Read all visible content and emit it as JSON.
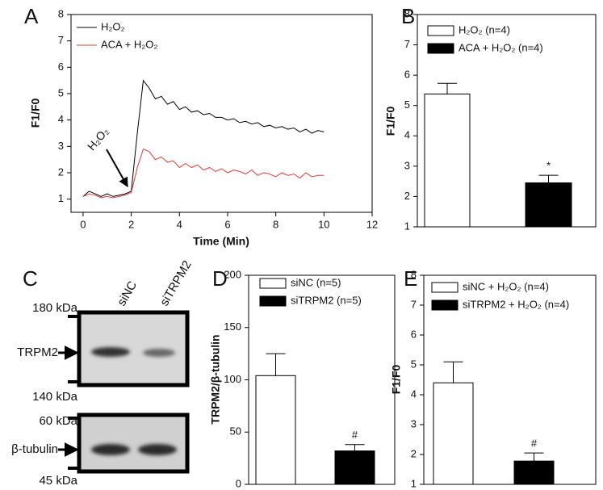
{
  "chart_data": [
    {
      "type": "line",
      "panel": "A",
      "x_label": "Time (Min)",
      "y_label": "F1/F0",
      "xlim": [
        -0.5,
        12
      ],
      "ylim": [
        0.5,
        8
      ],
      "xticks": [
        0,
        2,
        4,
        6,
        8,
        10,
        12
      ],
      "yticks": [
        1,
        2,
        3,
        4,
        5,
        6,
        7,
        8
      ],
      "annotation": "H₂O₂",
      "x": [
        0,
        0.25,
        0.5,
        0.75,
        1,
        1.25,
        1.5,
        1.75,
        2,
        2.25,
        2.5,
        2.75,
        3,
        3.25,
        3.5,
        3.75,
        4,
        4.25,
        4.5,
        4.75,
        5,
        5.25,
        5.5,
        5.75,
        6,
        6.25,
        6.5,
        6.75,
        7,
        7.25,
        7.5,
        7.75,
        8,
        8.25,
        8.5,
        8.75,
        9,
        9.25,
        9.5,
        9.75,
        10
      ],
      "series": [
        {
          "name": "H₂O₂",
          "color": "#000000",
          "values": [
            1.1,
            1.3,
            1.2,
            1.1,
            1.2,
            1.1,
            1.15,
            1.2,
            1.3,
            3.5,
            5.5,
            5.2,
            4.8,
            4.9,
            4.6,
            4.7,
            4.4,
            4.5,
            4.3,
            4.35,
            4.2,
            4.25,
            4.1,
            4.1,
            4.0,
            4.05,
            3.9,
            3.95,
            3.85,
            3.9,
            3.75,
            3.8,
            3.7,
            3.75,
            3.65,
            3.7,
            3.55,
            3.65,
            3.5,
            3.6,
            3.55
          ]
        },
        {
          "name": "ACA + H₂O₂",
          "color": "#e03c3c",
          "values": [
            1.1,
            1.2,
            1.15,
            1.05,
            1.1,
            1.05,
            1.1,
            1.15,
            1.25,
            2.2,
            2.9,
            2.8,
            2.5,
            2.6,
            2.4,
            2.45,
            2.2,
            2.35,
            2.2,
            2.3,
            2.1,
            2.2,
            2.05,
            2.15,
            2.0,
            2.1,
            2.05,
            1.95,
            2.1,
            1.9,
            2.0,
            1.95,
            1.85,
            2.0,
            1.9,
            1.95,
            1.8,
            2.0,
            1.85,
            1.9,
            1.9
          ]
        }
      ]
    },
    {
      "type": "bar",
      "panel": "B",
      "y_label": "F1/F0",
      "ylim": [
        1,
        8
      ],
      "yticks": [
        1,
        2,
        3,
        4,
        5,
        6,
        7,
        8
      ],
      "series": [
        {
          "name": "H₂O₂ (n=4)",
          "color": "#ffffff",
          "values": [
            5.38
          ],
          "errors": [
            0.35
          ]
        },
        {
          "name": "ACA + H₂O₂ (n=4)",
          "color": "#000000",
          "values": [
            2.45
          ],
          "errors": [
            0.25
          ],
          "marker_label": "*"
        }
      ]
    },
    {
      "type": "bar",
      "panel": "D",
      "y_label": "TRPM2/β-tubulin",
      "ylim": [
        0,
        200
      ],
      "yticks": [
        0,
        50,
        100,
        150,
        200
      ],
      "series": [
        {
          "name": "siNC (n=5)",
          "color": "#ffffff",
          "values": [
            104
          ],
          "errors": [
            21
          ]
        },
        {
          "name": "siTRPM2 (n=5)",
          "color": "#000000",
          "values": [
            32
          ],
          "errors": [
            6
          ],
          "marker_label": "#"
        }
      ]
    },
    {
      "type": "bar",
      "panel": "E",
      "y_label": "F1/F0",
      "ylim": [
        1,
        8
      ],
      "yticks": [
        1,
        2,
        3,
        4,
        5,
        6,
        7,
        8
      ],
      "series": [
        {
          "name": "siNC + H₂O₂ (n=4)",
          "color": "#ffffff",
          "values": [
            4.4
          ],
          "errors": [
            0.7
          ]
        },
        {
          "name": "siTRPM2 + H₂O₂ (n=4)",
          "color": "#000000",
          "values": [
            1.78
          ],
          "errors": [
            0.27
          ],
          "marker_label": "#"
        }
      ]
    }
  ],
  "blot": {
    "panel": "C",
    "lanes": [
      "siNC",
      "siTRPM2"
    ],
    "top_marker_high": "180 kDa",
    "top_target": "TRPM2",
    "top_marker_low": "140 kDa",
    "bottom_marker_high": "60 kDa",
    "bottom_target": "β-tubulin",
    "bottom_marker_low": "45 kDa"
  }
}
